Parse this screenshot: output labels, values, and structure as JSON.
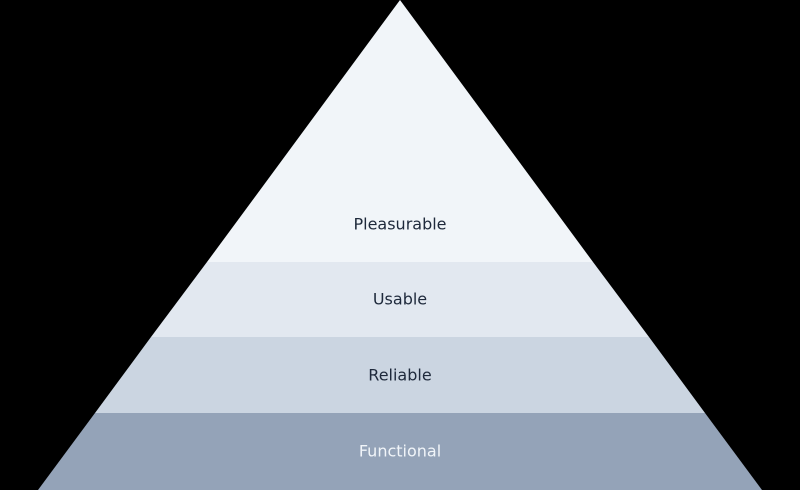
{
  "diagram": {
    "type": "pyramid",
    "levels": [
      {
        "label": "Pleasurable",
        "fill": "#f1f5f9",
        "text_color": "#1e293b"
      },
      {
        "label": "Usable",
        "fill": "#e2e8f0",
        "text_color": "#1e293b"
      },
      {
        "label": "Reliable",
        "fill": "#cbd5e1",
        "text_color": "#1e293b"
      },
      {
        "label": "Functional",
        "fill": "#94a3b8",
        "text_color": "#f1f5f9"
      }
    ],
    "background": "#000000"
  }
}
